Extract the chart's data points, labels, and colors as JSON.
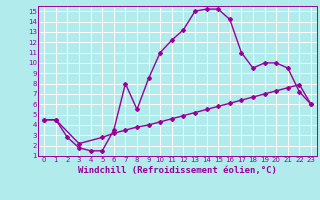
{
  "xlabel": "Windchill (Refroidissement éolien,°C)",
  "bg_color": "#b2ebeb",
  "line_color": "#990099",
  "grid_color": "#ffffff",
  "xlim": [
    -0.5,
    23.5
  ],
  "ylim": [
    1,
    15.5
  ],
  "xticks": [
    0,
    1,
    2,
    3,
    4,
    5,
    6,
    7,
    8,
    9,
    10,
    11,
    12,
    13,
    14,
    15,
    16,
    17,
    18,
    19,
    20,
    21,
    22,
    23
  ],
  "yticks": [
    1,
    2,
    3,
    4,
    5,
    6,
    7,
    8,
    9,
    10,
    11,
    12,
    13,
    14,
    15
  ],
  "line1_x": [
    0,
    1,
    2,
    3,
    4,
    5,
    6,
    7,
    8,
    9,
    10,
    11,
    12,
    13,
    14,
    15,
    16,
    17,
    18,
    19,
    20,
    21,
    22,
    23
  ],
  "line1_y": [
    4.5,
    4.5,
    2.8,
    1.8,
    1.5,
    1.5,
    3.5,
    8.0,
    5.5,
    8.5,
    11.0,
    12.2,
    13.2,
    15.0,
    15.2,
    15.2,
    14.2,
    11.0,
    9.5,
    10.0,
    10.0,
    9.5,
    7.2,
    6.0
  ],
  "line2_x": [
    0,
    1,
    3,
    5,
    6,
    7,
    8,
    9,
    10,
    11,
    12,
    13,
    14,
    15,
    16,
    17,
    18,
    19,
    20,
    21,
    22,
    23
  ],
  "line2_y": [
    4.5,
    4.5,
    2.2,
    2.8,
    3.2,
    3.5,
    3.8,
    4.0,
    4.3,
    4.6,
    4.9,
    5.2,
    5.5,
    5.8,
    6.1,
    6.4,
    6.7,
    7.0,
    7.3,
    7.6,
    7.9,
    6.0
  ],
  "marker": "D",
  "markersize": 2,
  "linewidth": 1.0,
  "tick_fontsize": 5,
  "label_fontsize": 6.5
}
